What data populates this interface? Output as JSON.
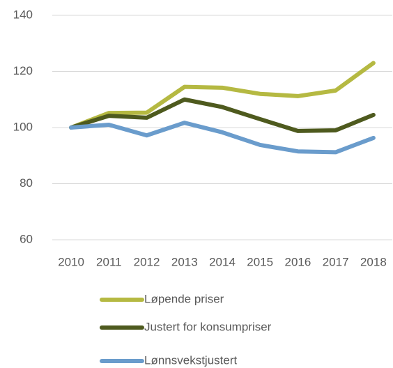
{
  "chart_data": {
    "type": "line",
    "categories": [
      "2010",
      "2011",
      "2012",
      "2013",
      "2014",
      "2015",
      "2016",
      "2017",
      "2018"
    ],
    "series": [
      {
        "name": "Løpende priser",
        "color": "#b5b942",
        "values": [
          100,
          105.2,
          105.3,
          114.5,
          114.2,
          112,
          111.2,
          113.2,
          123
        ]
      },
      {
        "name": "Justert for konsumpriser",
        "color": "#4e5a1e",
        "values": [
          100,
          104.2,
          103.5,
          110,
          107.3,
          103,
          98.8,
          99,
          104.5
        ]
      },
      {
        "name": "Lønnsvekstjustert",
        "color": "#6a9ccc",
        "values": [
          100,
          101,
          97.2,
          101.7,
          98.3,
          93.8,
          91.5,
          91.2,
          96.3
        ]
      }
    ],
    "ylim": [
      60,
      140
    ],
    "yticks": [
      60,
      80,
      100,
      120,
      140
    ],
    "grid": true,
    "legend": "bottom"
  }
}
